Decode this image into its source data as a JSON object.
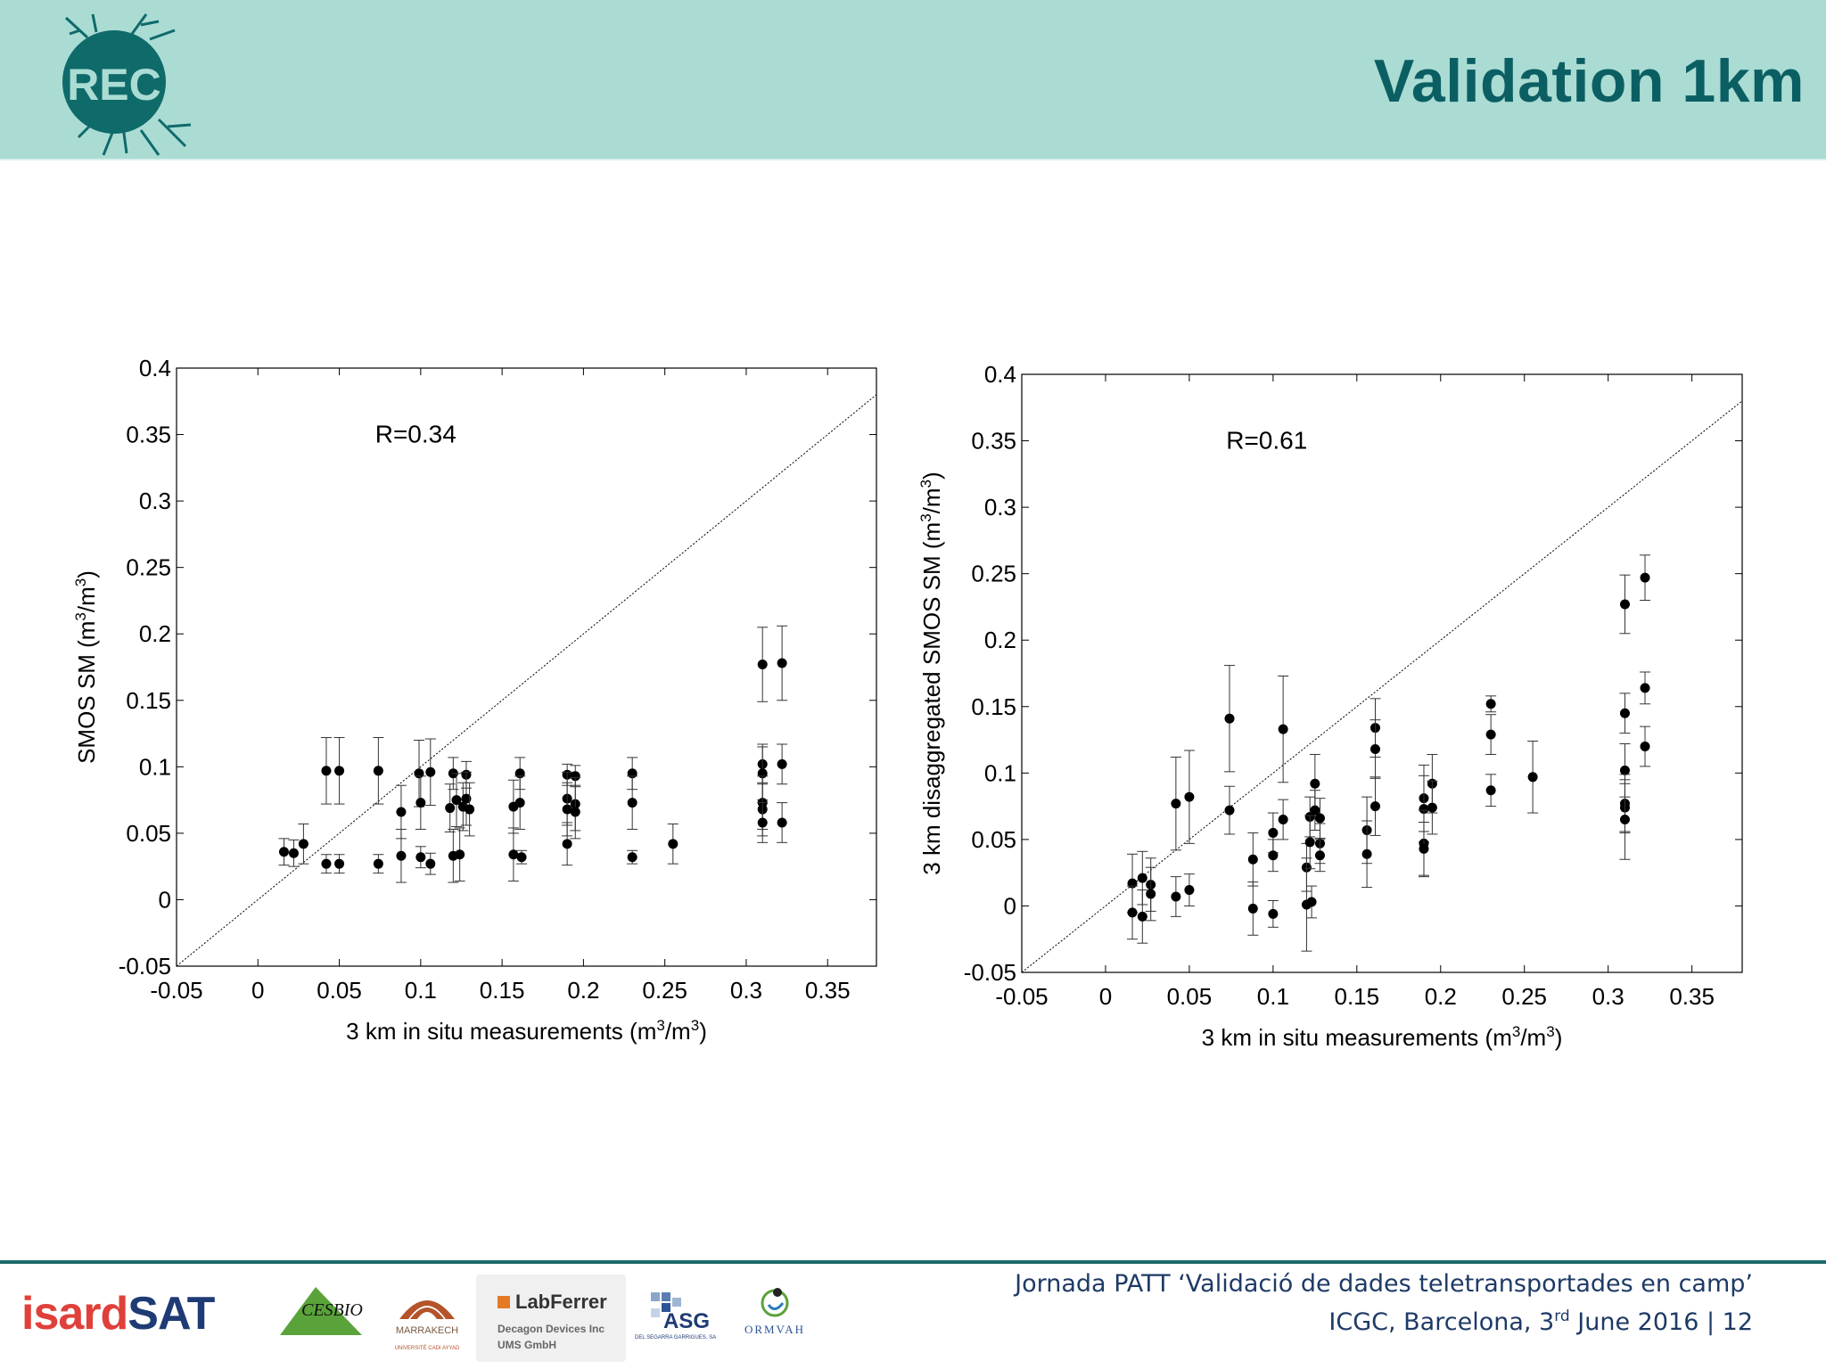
{
  "header": {
    "title": "Validation 1km",
    "logo_text": "REC",
    "color": "#aadcd4",
    "title_color": "#0b5f63"
  },
  "chart_data": [
    {
      "type": "scatter",
      "title": "",
      "xlabel": "3 km in situ measurements (m",
      "ylabel": "SMOS SM (m",
      "xlim": [
        -0.05,
        0.38
      ],
      "ylim": [
        -0.05,
        0.4
      ],
      "x_ticks": [
        "-0.05",
        "0",
        "0.05",
        "0.1",
        "0.15",
        "0.2",
        "0.25",
        "0.3",
        "0.35"
      ],
      "y_ticks": [
        "-0.05",
        "0",
        "0.05",
        "0.1",
        "0.15",
        "0.2",
        "0.25",
        "0.3",
        "0.35",
        "0.4"
      ],
      "annotation": "R=0.34",
      "one_to_one_line": true,
      "grid": false,
      "points": [
        {
          "x": 0.016,
          "y": 0.036,
          "err": 0.01
        },
        {
          "x": 0.022,
          "y": 0.035,
          "err": 0.01
        },
        {
          "x": 0.028,
          "y": 0.042,
          "err": 0.015
        },
        {
          "x": 0.042,
          "y": 0.097,
          "err": 0.025
        },
        {
          "x": 0.042,
          "y": 0.027,
          "err": 0.007
        },
        {
          "x": 0.05,
          "y": 0.097,
          "err": 0.025
        },
        {
          "x": 0.05,
          "y": 0.027,
          "err": 0.007
        },
        {
          "x": 0.074,
          "y": 0.097,
          "err": 0.025
        },
        {
          "x": 0.074,
          "y": 0.027,
          "err": 0.007
        },
        {
          "x": 0.088,
          "y": 0.066,
          "err": 0.02
        },
        {
          "x": 0.088,
          "y": 0.033,
          "err": 0.02
        },
        {
          "x": 0.099,
          "y": 0.095,
          "err": 0.025
        },
        {
          "x": 0.1,
          "y": 0.073,
          "err": 0.02
        },
        {
          "x": 0.1,
          "y": 0.032,
          "err": 0.008
        },
        {
          "x": 0.106,
          "y": 0.096,
          "err": 0.025
        },
        {
          "x": 0.106,
          "y": 0.027,
          "err": 0.008
        },
        {
          "x": 0.118,
          "y": 0.069,
          "err": 0.018
        },
        {
          "x": 0.12,
          "y": 0.095,
          "err": 0.012
        },
        {
          "x": 0.12,
          "y": 0.033,
          "err": 0.02
        },
        {
          "x": 0.122,
          "y": 0.075,
          "err": 0.02
        },
        {
          "x": 0.124,
          "y": 0.034,
          "err": 0.02
        },
        {
          "x": 0.126,
          "y": 0.07,
          "err": 0.018
        },
        {
          "x": 0.128,
          "y": 0.094,
          "err": 0.01
        },
        {
          "x": 0.128,
          "y": 0.076,
          "err": 0.02
        },
        {
          "x": 0.13,
          "y": 0.068,
          "err": 0.02
        },
        {
          "x": 0.157,
          "y": 0.07,
          "err": 0.02
        },
        {
          "x": 0.157,
          "y": 0.034,
          "err": 0.02
        },
        {
          "x": 0.161,
          "y": 0.095,
          "err": 0.012
        },
        {
          "x": 0.161,
          "y": 0.073,
          "err": 0.02
        },
        {
          "x": 0.162,
          "y": 0.032,
          "err": 0.005
        },
        {
          "x": 0.19,
          "y": 0.094,
          "err": 0.008
        },
        {
          "x": 0.19,
          "y": 0.076,
          "err": 0.02
        },
        {
          "x": 0.19,
          "y": 0.068,
          "err": 0.02
        },
        {
          "x": 0.19,
          "y": 0.042,
          "err": 0.016
        },
        {
          "x": 0.195,
          "y": 0.093,
          "err": 0.008
        },
        {
          "x": 0.195,
          "y": 0.072,
          "err": 0.02
        },
        {
          "x": 0.195,
          "y": 0.066,
          "err": 0.02
        },
        {
          "x": 0.23,
          "y": 0.095,
          "err": 0.012
        },
        {
          "x": 0.23,
          "y": 0.073,
          "err": 0.02
        },
        {
          "x": 0.23,
          "y": 0.032,
          "err": 0.005
        },
        {
          "x": 0.255,
          "y": 0.042,
          "err": 0.015
        },
        {
          "x": 0.31,
          "y": 0.177,
          "err": 0.028
        },
        {
          "x": 0.31,
          "y": 0.102,
          "err": 0.015
        },
        {
          "x": 0.31,
          "y": 0.095,
          "err": 0.02
        },
        {
          "x": 0.31,
          "y": 0.073,
          "err": 0.02
        },
        {
          "x": 0.31,
          "y": 0.068,
          "err": 0.02
        },
        {
          "x": 0.31,
          "y": 0.058,
          "err": 0.015
        },
        {
          "x": 0.322,
          "y": 0.178,
          "err": 0.028
        },
        {
          "x": 0.322,
          "y": 0.102,
          "err": 0.015
        },
        {
          "x": 0.322,
          "y": 0.058,
          "err": 0.015
        }
      ]
    },
    {
      "type": "scatter",
      "title": "",
      "xlabel": "3 km in situ measurements (m",
      "ylabel": "3 km disaggregated SMOS SM (m",
      "xlim": [
        -0.05,
        0.38
      ],
      "ylim": [
        -0.05,
        0.4
      ],
      "x_ticks": [
        "-0.05",
        "0",
        "0.05",
        "0.1",
        "0.15",
        "0.2",
        "0.25",
        "0.3",
        "0.35"
      ],
      "y_ticks": [
        "-0.05",
        "0",
        "0.05",
        "0.1",
        "0.15",
        "0.2",
        "0.25",
        "0.3",
        "0.35",
        "0.4"
      ],
      "annotation": "R=0.61",
      "one_to_one_line": true,
      "grid": false,
      "points": [
        {
          "x": 0.016,
          "y": 0.017,
          "err": 0.022
        },
        {
          "x": 0.016,
          "y": -0.005,
          "err": 0.02
        },
        {
          "x": 0.022,
          "y": 0.021,
          "err": 0.02
        },
        {
          "x": 0.022,
          "y": -0.008,
          "err": 0.02
        },
        {
          "x": 0.027,
          "y": 0.016,
          "err": 0.02
        },
        {
          "x": 0.027,
          "y": 0.009,
          "err": 0.02
        },
        {
          "x": 0.042,
          "y": 0.077,
          "err": 0.035
        },
        {
          "x": 0.042,
          "y": 0.007,
          "err": 0.015
        },
        {
          "x": 0.05,
          "y": 0.082,
          "err": 0.035
        },
        {
          "x": 0.05,
          "y": 0.012,
          "err": 0.012
        },
        {
          "x": 0.074,
          "y": 0.141,
          "err": 0.04
        },
        {
          "x": 0.074,
          "y": 0.072,
          "err": 0.018
        },
        {
          "x": 0.088,
          "y": 0.035,
          "err": 0.02
        },
        {
          "x": 0.088,
          "y": -0.002,
          "err": 0.02
        },
        {
          "x": 0.1,
          "y": 0.055,
          "err": 0.015
        },
        {
          "x": 0.1,
          "y": 0.038,
          "err": 0.012
        },
        {
          "x": 0.1,
          "y": -0.006,
          "err": 0.01
        },
        {
          "x": 0.106,
          "y": 0.133,
          "err": 0.04
        },
        {
          "x": 0.106,
          "y": 0.065,
          "err": 0.015
        },
        {
          "x": 0.12,
          "y": 0.029,
          "err": 0.018
        },
        {
          "x": 0.12,
          "y": 0.001,
          "err": 0.035
        },
        {
          "x": 0.122,
          "y": 0.067,
          "err": 0.015
        },
        {
          "x": 0.122,
          "y": 0.048,
          "err": 0.02
        },
        {
          "x": 0.123,
          "y": 0.003,
          "err": 0.012
        },
        {
          "x": 0.125,
          "y": 0.092,
          "err": 0.022
        },
        {
          "x": 0.125,
          "y": 0.072,
          "err": 0.015
        },
        {
          "x": 0.128,
          "y": 0.066,
          "err": 0.015
        },
        {
          "x": 0.128,
          "y": 0.047,
          "err": 0.015
        },
        {
          "x": 0.128,
          "y": 0.038,
          "err": 0.012
        },
        {
          "x": 0.156,
          "y": 0.057,
          "err": 0.025
        },
        {
          "x": 0.156,
          "y": 0.039,
          "err": 0.025
        },
        {
          "x": 0.161,
          "y": 0.134,
          "err": 0.022
        },
        {
          "x": 0.161,
          "y": 0.118,
          "err": 0.022
        },
        {
          "x": 0.161,
          "y": 0.075,
          "err": 0.022
        },
        {
          "x": 0.19,
          "y": 0.081,
          "err": 0.025
        },
        {
          "x": 0.19,
          "y": 0.073,
          "err": 0.025
        },
        {
          "x": 0.19,
          "y": 0.047,
          "err": 0.025
        },
        {
          "x": 0.19,
          "y": 0.043,
          "err": 0.02
        },
        {
          "x": 0.195,
          "y": 0.092,
          "err": 0.022
        },
        {
          "x": 0.195,
          "y": 0.074,
          "err": 0.02
        },
        {
          "x": 0.23,
          "y": 0.152,
          "err": 0.006
        },
        {
          "x": 0.23,
          "y": 0.129,
          "err": 0.015
        },
        {
          "x": 0.23,
          "y": 0.087,
          "err": 0.012
        },
        {
          "x": 0.255,
          "y": 0.097,
          "err": 0.027
        },
        {
          "x": 0.31,
          "y": 0.227,
          "err": 0.022
        },
        {
          "x": 0.31,
          "y": 0.145,
          "err": 0.015
        },
        {
          "x": 0.31,
          "y": 0.102,
          "err": 0.02
        },
        {
          "x": 0.31,
          "y": 0.077,
          "err": 0.022
        },
        {
          "x": 0.31,
          "y": 0.074,
          "err": 0.018
        },
        {
          "x": 0.31,
          "y": 0.065,
          "err": 0.03
        },
        {
          "x": 0.322,
          "y": 0.247,
          "err": 0.017
        },
        {
          "x": 0.322,
          "y": 0.164,
          "err": 0.012
        },
        {
          "x": 0.322,
          "y": 0.12,
          "err": 0.015
        }
      ]
    }
  ],
  "footer": {
    "line1": "Jornada PATT ‘Validació de dades teletransportades en camp’",
    "line2a": "ICGC, Barcelona, 3",
    "line2sup": "rd",
    "line2b": " June 2016 | 12",
    "line_color": "#1f6a6a",
    "text_color": "#1e3a66"
  },
  "sponsors": {
    "isard_a": "isard",
    "isard_b": "SAT",
    "cesbio": "CESBIO",
    "marrakech": "MARRAKECH",
    "marrakech_sub": "UNIVERSITÉ CADI AYYAD",
    "labferrer": "LabFerrer",
    "labferrer_sub1": "Decagon Devices Inc",
    "labferrer_sub2": "UMS GmbH",
    "asg": "ASG",
    "asg_sub": "DEL SEGARRA GARRIGUES, SA",
    "ormvah": "ORMVAH"
  }
}
